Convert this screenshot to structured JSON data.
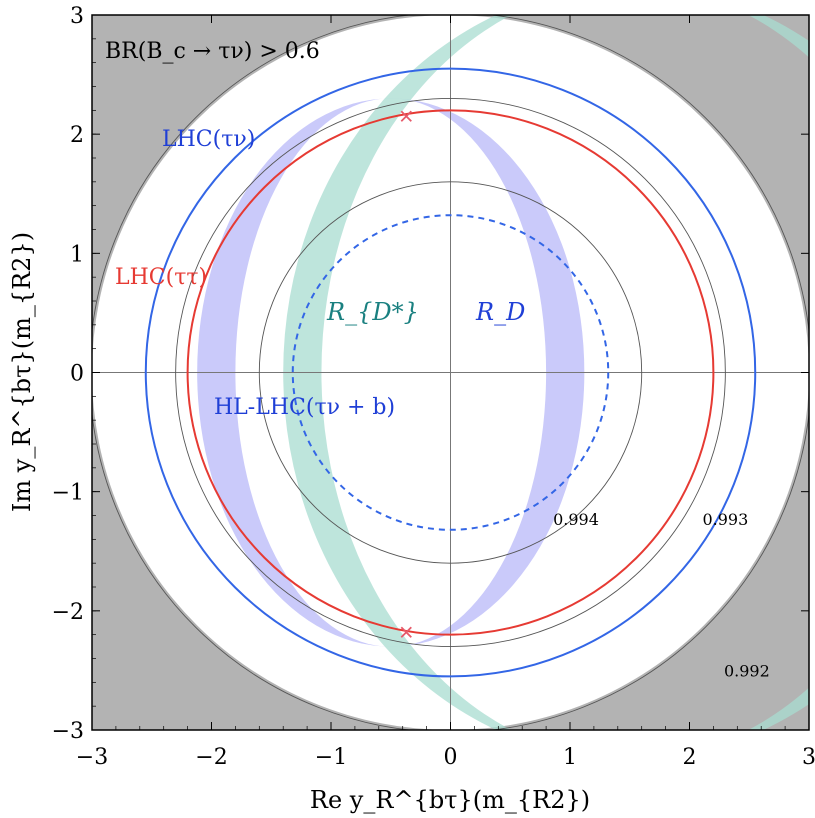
{
  "chart_data": {
    "type": "contour",
    "title": "",
    "xlabel": "Re y_R^{bτ}(m_{R2})",
    "ylabel": "Im y_R^{bτ}(m_{R2})",
    "xlim": [
      -3,
      3
    ],
    "ylim": [
      -3,
      3
    ],
    "xticks": [
      "−3",
      "−2",
      "−1",
      "0",
      "1",
      "2",
      "3"
    ],
    "yticks": [
      "−3",
      "−2",
      "−1",
      "0",
      "1",
      "2",
      "3"
    ],
    "grid": false,
    "annotations": {
      "br": "BR(B_c → τν) > 0.6",
      "lhc_tn": "LHC(τν)",
      "lhc_tt": "LHC(ττ)",
      "rds": "R_{D*}",
      "rd": "R_D",
      "hl": "HL-LHC(τν + b)"
    },
    "excluded_region": {
      "name": "BR(Bc→τν) > 0.6",
      "radius": 3.0,
      "color": "#b3b3b3"
    },
    "limit_circles": [
      {
        "name": "LHC(τν)",
        "radius": 2.55,
        "color": "#3366e6",
        "dashed": false
      },
      {
        "name": "LHC(ττ)",
        "radius": 2.2,
        "color": "#e63a33",
        "dashed": false
      },
      {
        "name": "HL-LHC(τν + b)",
        "radius": 1.32,
        "color": "#3366e6",
        "dashed": true
      }
    ],
    "gray_contours": [
      {
        "label": "0.994",
        "radius": 1.6
      },
      {
        "label": "0.993",
        "radius": 2.3
      },
      {
        "label": "0.992",
        "radius": 3.02
      }
    ],
    "bands": [
      {
        "name": "R_D",
        "color": "#b8b8f8",
        "center_x": -0.5,
        "radius_x_inner": 1.3,
        "radius_x_outer": 1.62,
        "radius_y": 2.3
      },
      {
        "name": "R_{D*}",
        "color": "#a8dcd0",
        "center_x": 1.5,
        "radius_x_inner": 2.58,
        "radius_x_outer": 2.9,
        "radius_y": 3.25
      }
    ],
    "best_fit_points": [
      {
        "x": -0.37,
        "y": 2.15
      },
      {
        "x": -0.37,
        "y": -2.18
      }
    ],
    "marker_color": "#e65a6a"
  }
}
